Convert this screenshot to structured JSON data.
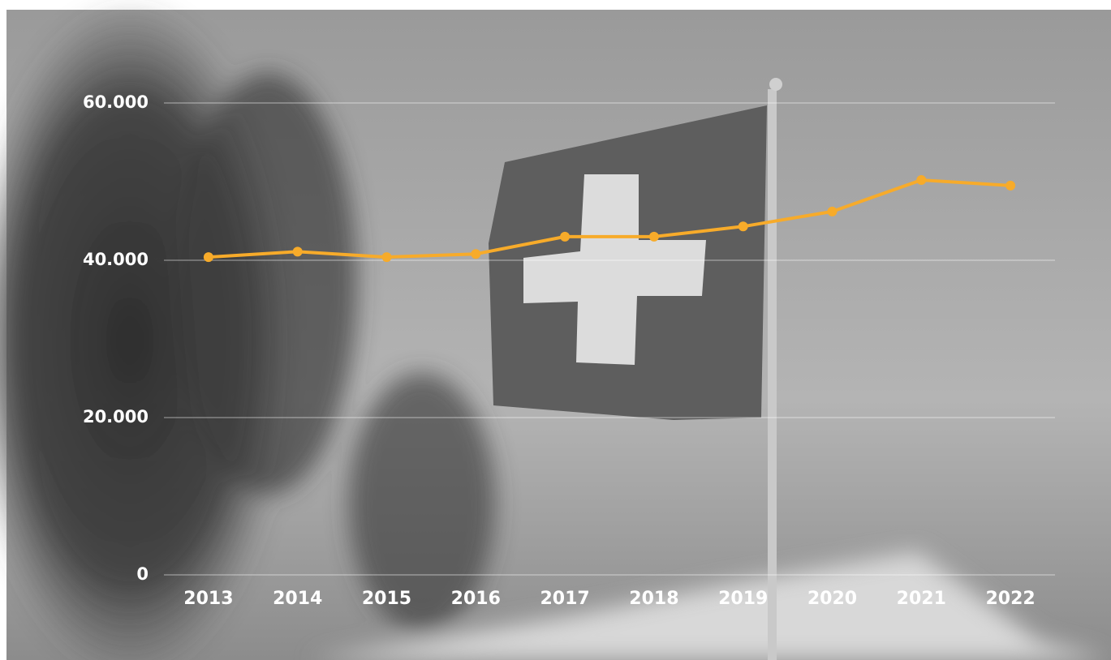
{
  "chart_data": {
    "type": "line",
    "categories": [
      "2013",
      "2014",
      "2015",
      "2016",
      "2017",
      "2018",
      "2019",
      "2020",
      "2021",
      "2022"
    ],
    "values": [
      40400,
      41100,
      40400,
      40800,
      43000,
      43000,
      44300,
      46200,
      50200,
      49500
    ],
    "color": "#f7ab2a",
    "ylim": [
      0,
      60000
    ],
    "yticks": [
      0,
      {
        "value": 20000,
        "label": "20.000"
      },
      {
        "value": 40000,
        "label": "40.000"
      },
      {
        "value": 60000,
        "label": "60.000"
      }
    ],
    "grid": true
  }
}
